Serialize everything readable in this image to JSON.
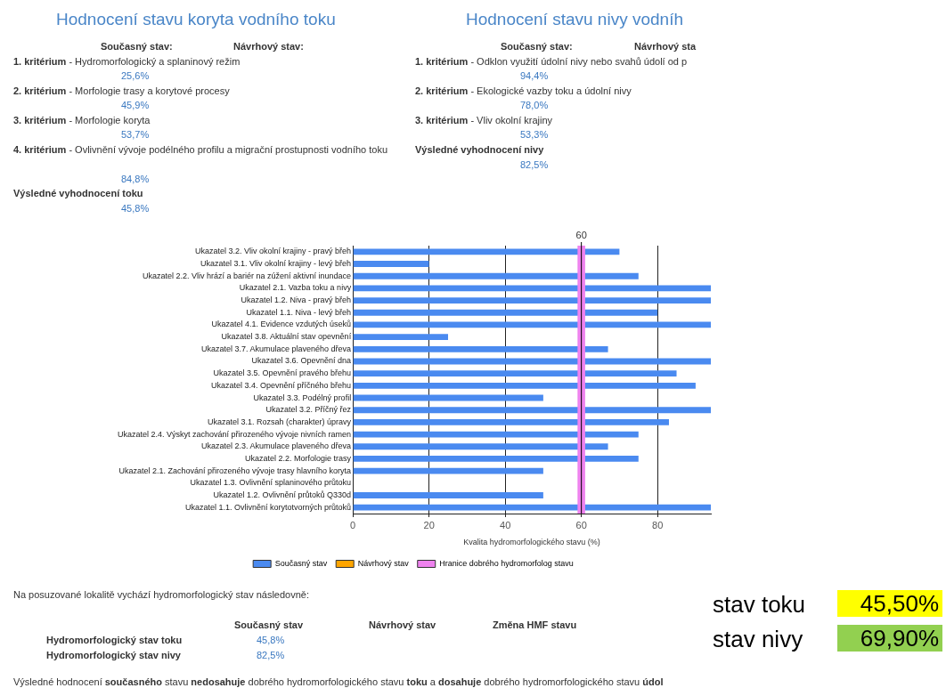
{
  "chart_data": {
    "type": "bar",
    "orientation": "horizontal",
    "categories": [
      "Ukazatel 3.2. Vliv okolní krajiny - pravý břeh",
      "Ukazatel 3.1. Vliv okolní krajiny - levý břeh",
      "Ukazatel 2.2. Vliv hrází a bariér na zúžení aktivní inundace",
      "Ukazatel 2.1. Vazba toku a nivy",
      "Ukazatel 1.2. Niva - pravý břeh",
      "Ukazatel 1.1. Niva - levý břeh",
      "Ukazatel 4.1. Evidence vzdutých úseků",
      "Ukazatel 3.8. Aktuální stav opevnění",
      "Ukazatel 3.7. Akumulace plaveného dřeva",
      "Ukazatel 3.6. Opevnění dna",
      "Ukazatel 3.5. Opevnění pravého břehu",
      "Ukazatel 3.4. Opevnění příčného břehu",
      "Ukazatel 3.3. Podélný profil",
      "Ukazatel 3.2. Příčný řez",
      "Ukazatel 3.1. Rozsah (charakter) úpravy",
      "Ukazatel 2.4. Výskyt zachování přirozeného vývoje nivních ramen",
      "Ukazatel 2.3. Akumulace plaveného dřeva",
      "Ukazatel 2.2. Morfologie trasy",
      "Ukazatel 2.1. Zachování přirozeného vývoje trasy hlavního koryta",
      "Ukazatel 1.3. Ovlivnění splaninového průtoku",
      "Ukazatel 1.2. Ovlivnění průtoků Q330d",
      "Ukazatel 1.1. Ovlivnění korytotvorných průtoků"
    ],
    "series": [
      {
        "name": "Současný stav",
        "color": "#4a8af0",
        "values": [
          70,
          20,
          75,
          94,
          94,
          80,
          94,
          25,
          67,
          94,
          85,
          90,
          50,
          94,
          83,
          75,
          67,
          75,
          50,
          null,
          50,
          94
        ]
      },
      {
        "name": "Návrhový stav",
        "color": "#ffa500",
        "values": [
          null,
          null,
          null,
          null,
          null,
          null,
          null,
          null,
          null,
          null,
          null,
          null,
          null,
          null,
          null,
          null,
          null,
          null,
          null,
          null,
          null,
          null
        ]
      }
    ],
    "xlabel": "Kvalita hydromorfologického stavu (%)",
    "xlim": [
      0,
      94
    ],
    "xticks": [
      0,
      20,
      40,
      60,
      80
    ],
    "grid": "x",
    "legend": "bottom",
    "bands": [
      {
        "axis": "x",
        "from": 59,
        "to": 61,
        "label": "Hranice dobrého hydromorfolog stavu",
        "color": "#ee82ee"
      }
    ],
    "ref_lines": [
      {
        "axis": "x",
        "value": 60,
        "label": "60",
        "color": "#000000"
      }
    ],
    "annotations": [
      "Hodnocení stavu koryta vodního toku",
      "Současný stav:",
      "Návrhový stav:",
      "1. kritérium",
      "- Hydromorfologický a splaninový režim",
      "25,6%",
      "2. kritérium",
      "- Morfologie trasy a korytové procesy",
      "45,9%",
      "3. kritérium",
      "- Morfologie koryta",
      "53,7%",
      "4. kritérium",
      "- Ovlivnění vývoje podélného profilu a migrační prostupnosti vodního toku",
      "84,8%",
      "Výsledné vyhodnocení toku",
      "45,8%",
      "Hodnocení stavu nivy vodníh",
      "Současný stav:",
      "Návrhový sta",
      "1. kritérium",
      "- Odklon využití údolní nivy nebo svahů údolí od p",
      "94,4%",
      "2. kritérium",
      "- Ekologické vazby toku a údolní nivy",
      "78,0%",
      "3. kritérium",
      "- Vliv okolní krajiny",
      "53,3%",
      "Výsledné vyhodnocení nivy",
      "82,5%",
      "Na posuzované lokalitě vychází hydromorfologický stav následovně:",
      "Současný stav",
      "Návrhový stav",
      "Změna HMF stavu",
      "Hydromorfologický stav toku",
      "45,8%",
      "Hydromorfologický stav nivy",
      "82,5%",
      "Výsledné hodnocení",
      "současného",
      "stavu",
      "nedosahuje",
      "dobrého hydromorfologického stavu",
      "toku",
      "a",
      "dosahuje",
      "dobrého hydromorfologického stavu",
      "údol",
      "stav toku",
      "45,50%",
      "stav nivy",
      "69,90%"
    ]
  }
}
